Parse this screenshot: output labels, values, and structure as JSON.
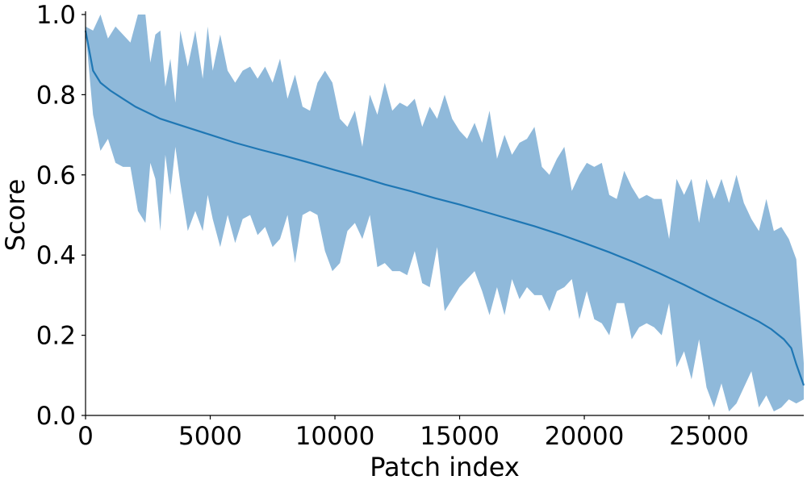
{
  "chart_data": {
    "type": "area",
    "title": "",
    "xlabel": "Patch index",
    "ylabel": "Score",
    "xlim": [
      0,
      28800
    ],
    "ylim": [
      0.0,
      1.0
    ],
    "x_ticks": [
      0,
      5000,
      10000,
      15000,
      20000,
      25000
    ],
    "y_ticks": [
      "0.0",
      "0.2",
      "0.4",
      "0.6",
      "0.8",
      "1.0"
    ],
    "grid": false,
    "legend": "none",
    "colors": {
      "line": "#1f77b4",
      "band": "#8fb9da"
    },
    "series": [
      {
        "style": "line",
        "x": [
          0,
          300,
          600,
          1000,
          1500,
          2000,
          3000,
          4000,
          5000,
          6000,
          7000,
          8000,
          9000,
          10000,
          11000,
          12000,
          13000,
          14000,
          15000,
          16000,
          17000,
          18000,
          19000,
          20000,
          21000,
          22000,
          23000,
          24000,
          25000,
          26000,
          27000,
          27500,
          28000,
          28300,
          28500,
          28800
        ],
        "values": [
          0.96,
          0.86,
          0.83,
          0.81,
          0.79,
          0.77,
          0.74,
          0.72,
          0.7,
          0.68,
          0.663,
          0.647,
          0.63,
          0.612,
          0.595,
          0.576,
          0.56,
          0.542,
          0.526,
          0.508,
          0.49,
          0.472,
          0.452,
          0.43,
          0.407,
          0.382,
          0.355,
          0.326,
          0.295,
          0.265,
          0.234,
          0.215,
          0.19,
          0.168,
          0.128,
          0.075
        ]
      },
      {
        "style": "band",
        "x": [
          0,
          300,
          600,
          900,
          1200,
          1500,
          1800,
          2100,
          2400,
          2600,
          2800,
          3000,
          3200,
          3400,
          3600,
          3800,
          4100,
          4400,
          4700,
          4900,
          5100,
          5400,
          5700,
          6000,
          6300,
          6600,
          6900,
          7200,
          7500,
          7800,
          8100,
          8400,
          8700,
          9000,
          9300,
          9600,
          9900,
          10200,
          10500,
          10800,
          11100,
          11400,
          11700,
          12000,
          12300,
          12600,
          12900,
          13200,
          13500,
          13800,
          14100,
          14400,
          14700,
          15000,
          15300,
          15600,
          15900,
          16200,
          16500,
          16800,
          17100,
          17400,
          17700,
          18000,
          18300,
          18600,
          18900,
          19200,
          19500,
          19800,
          20100,
          20400,
          20700,
          21000,
          21300,
          21600,
          21900,
          22200,
          22500,
          22800,
          23100,
          23400,
          23700,
          24000,
          24300,
          24600,
          24900,
          25200,
          25500,
          25800,
          26100,
          26400,
          26700,
          27000,
          27300,
          27600,
          27900,
          28200,
          28500,
          28800
        ],
        "lower": [
          0.96,
          0.75,
          0.66,
          0.69,
          0.63,
          0.62,
          0.62,
          0.51,
          0.48,
          0.63,
          0.59,
          0.46,
          0.65,
          0.55,
          0.67,
          0.58,
          0.46,
          0.51,
          0.46,
          0.55,
          0.49,
          0.42,
          0.5,
          0.43,
          0.49,
          0.5,
          0.45,
          0.47,
          0.42,
          0.44,
          0.5,
          0.38,
          0.5,
          0.51,
          0.5,
          0.41,
          0.36,
          0.38,
          0.46,
          0.48,
          0.44,
          0.5,
          0.37,
          0.38,
          0.36,
          0.36,
          0.35,
          0.41,
          0.33,
          0.32,
          0.42,
          0.26,
          0.29,
          0.32,
          0.34,
          0.36,
          0.31,
          0.25,
          0.32,
          0.25,
          0.34,
          0.29,
          0.32,
          0.3,
          0.3,
          0.26,
          0.31,
          0.32,
          0.34,
          0.24,
          0.31,
          0.24,
          0.23,
          0.2,
          0.28,
          0.28,
          0.19,
          0.22,
          0.23,
          0.22,
          0.2,
          0.28,
          0.12,
          0.16,
          0.09,
          0.19,
          0.07,
          0.02,
          0.08,
          0.01,
          0.03,
          0.07,
          0.11,
          0.02,
          0.05,
          0.01,
          0.02,
          0.04,
          0.03,
          0.04
        ],
        "upper": [
          0.97,
          0.96,
          1.0,
          0.94,
          0.97,
          0.95,
          0.93,
          1.0,
          1.0,
          0.88,
          0.95,
          0.96,
          0.82,
          0.89,
          0.78,
          0.96,
          0.87,
          0.96,
          0.84,
          0.97,
          0.86,
          0.95,
          0.86,
          0.83,
          0.86,
          0.87,
          0.84,
          0.87,
          0.83,
          0.89,
          0.79,
          0.85,
          0.77,
          0.76,
          0.83,
          0.86,
          0.83,
          0.74,
          0.72,
          0.76,
          0.67,
          0.8,
          0.75,
          0.83,
          0.76,
          0.78,
          0.77,
          0.79,
          0.72,
          0.77,
          0.74,
          0.8,
          0.74,
          0.71,
          0.69,
          0.73,
          0.68,
          0.76,
          0.64,
          0.7,
          0.65,
          0.68,
          0.69,
          0.72,
          0.62,
          0.6,
          0.64,
          0.67,
          0.56,
          0.6,
          0.63,
          0.62,
          0.63,
          0.55,
          0.54,
          0.61,
          0.57,
          0.54,
          0.55,
          0.54,
          0.54,
          0.44,
          0.59,
          0.55,
          0.59,
          0.48,
          0.59,
          0.54,
          0.59,
          0.53,
          0.6,
          0.53,
          0.49,
          0.46,
          0.54,
          0.46,
          0.47,
          0.44,
          0.39,
          0.13
        ]
      }
    ]
  }
}
